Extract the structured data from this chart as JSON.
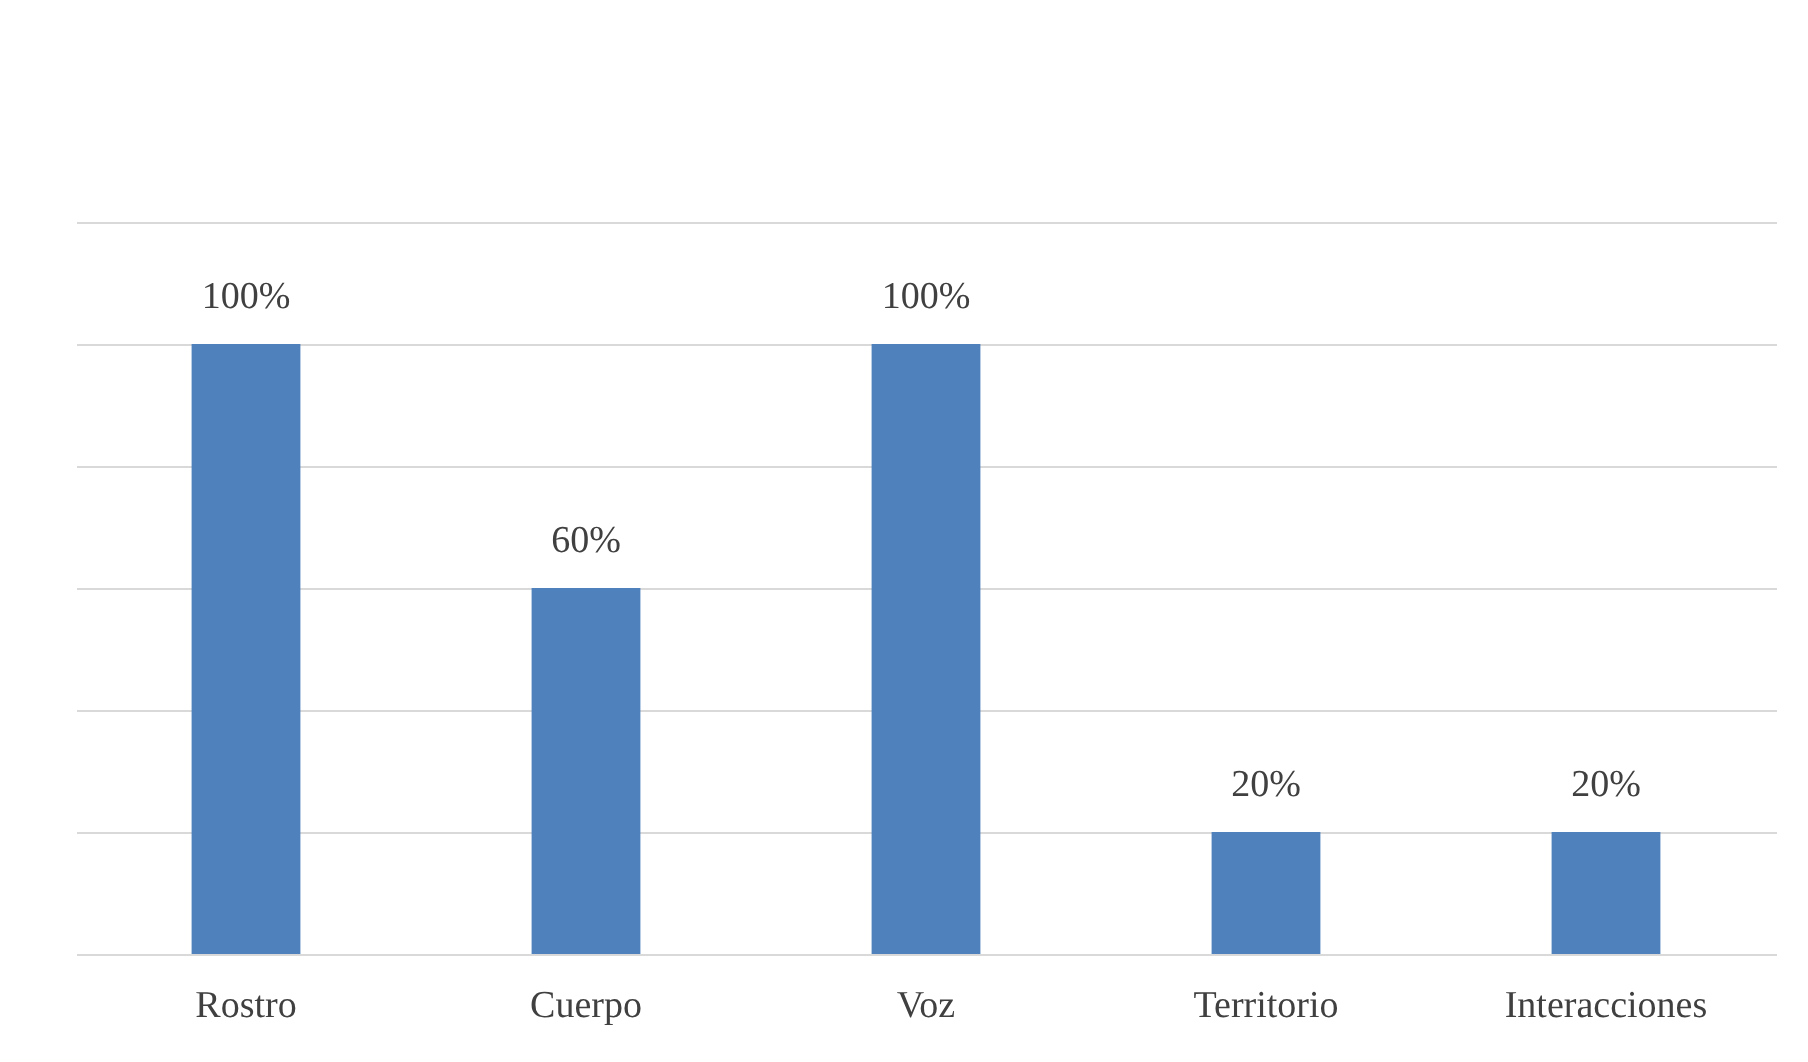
{
  "chart_data": {
    "type": "bar",
    "categories": [
      "Rostro",
      "Cuerpo",
      "Voz",
      "Territorio",
      "Interacciones"
    ],
    "values": [
      100,
      60,
      100,
      20,
      20
    ],
    "value_labels": [
      "100%",
      "60%",
      "100%",
      "20%",
      "20%"
    ],
    "color": "#4f81bd",
    "ylim": [
      0,
      120
    ],
    "yticks": [
      0,
      20,
      40,
      60,
      80,
      100,
      120
    ],
    "grid": "y",
    "tick_labels": "x"
  }
}
